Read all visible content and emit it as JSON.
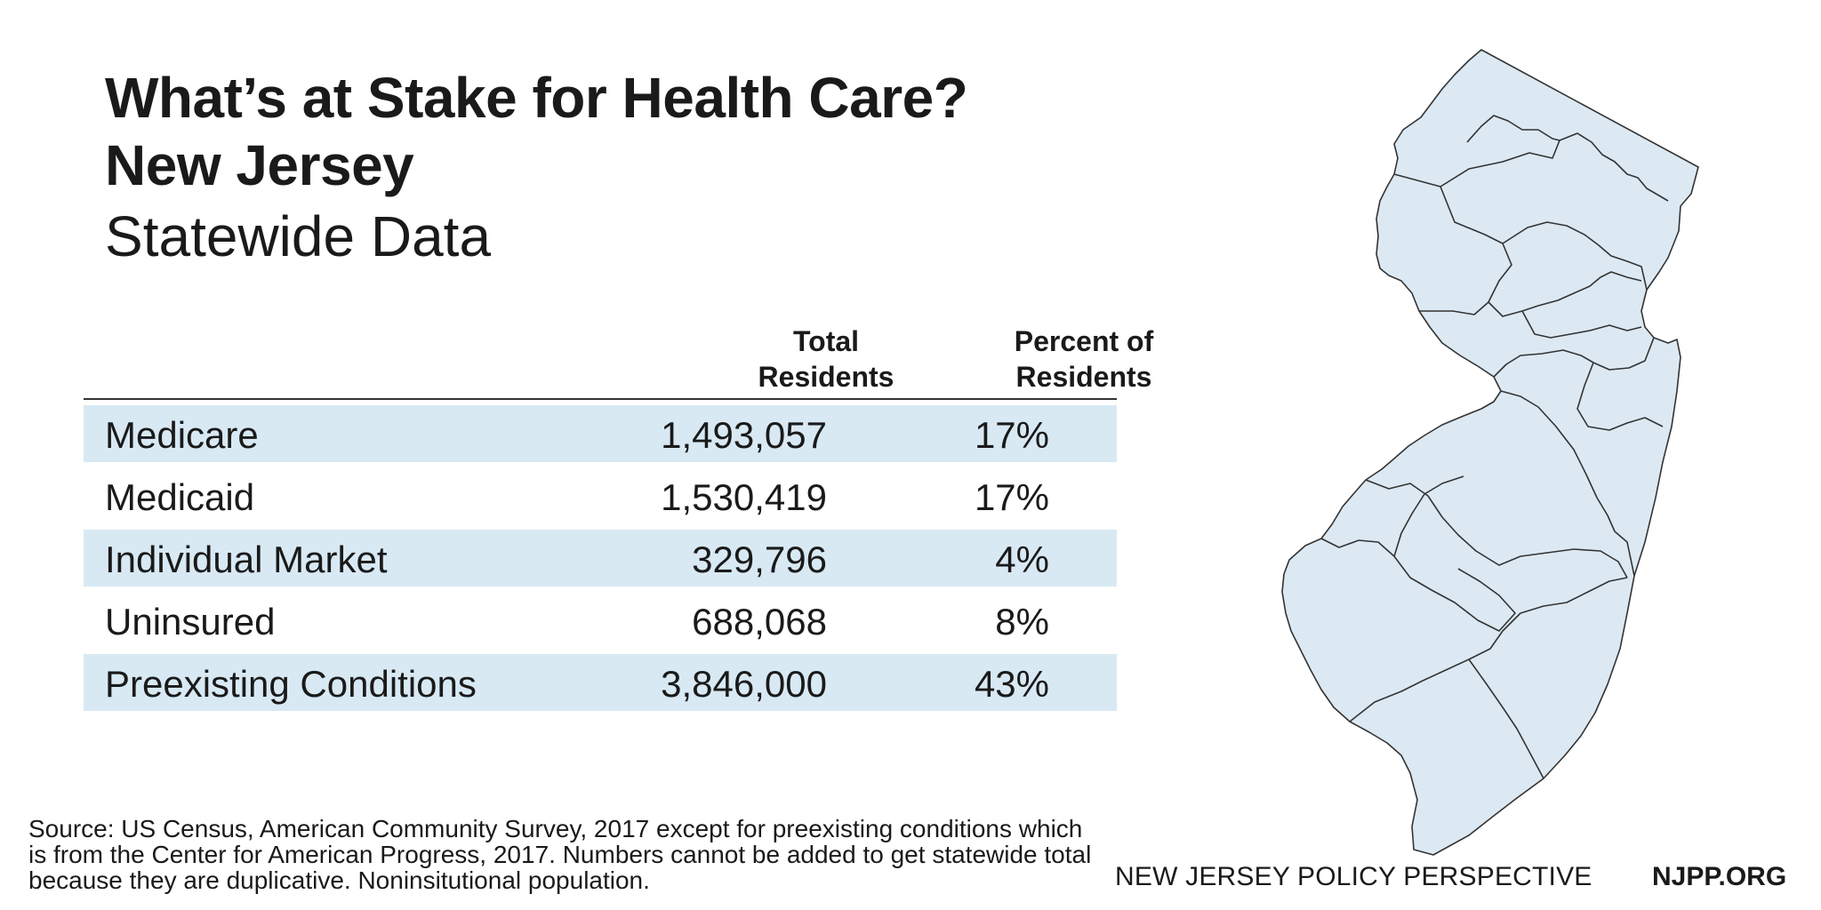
{
  "title": {
    "line1": "What’s at Stake for Health Care?",
    "line2": "New Jersey",
    "line3": "Statewide Data"
  },
  "table": {
    "columns": [
      "Total Residents",
      "Percent of Residents"
    ],
    "rows": [
      {
        "label": "Medicare",
        "total": "1,493,057",
        "percent": "17%"
      },
      {
        "label": "Medicaid",
        "total": "1,530,419",
        "percent": "17%"
      },
      {
        "label": "Individual Market",
        "total": "329,796",
        "percent": "4%"
      },
      {
        "label": "Uninsured",
        "total": "688,068",
        "percent": "8%"
      },
      {
        "label": "Preexisting Conditions",
        "total": "3,846,000",
        "percent": "43%"
      }
    ]
  },
  "source": "Source: US Census, American Community Survey, 2017 except for preexisting conditions which is from the Center for American Progress, 2017. Numbers cannot be added to get statewide total because they are duplicative. Noninsitutional population.",
  "footer": {
    "org": "NEW JERSEY POLICY PERSPECTIVE",
    "url": "NJPP.ORG"
  },
  "colors": {
    "row_highlight": "#d8e9f4",
    "map_fill": "#dce9f3",
    "map_stroke": "#333333"
  }
}
